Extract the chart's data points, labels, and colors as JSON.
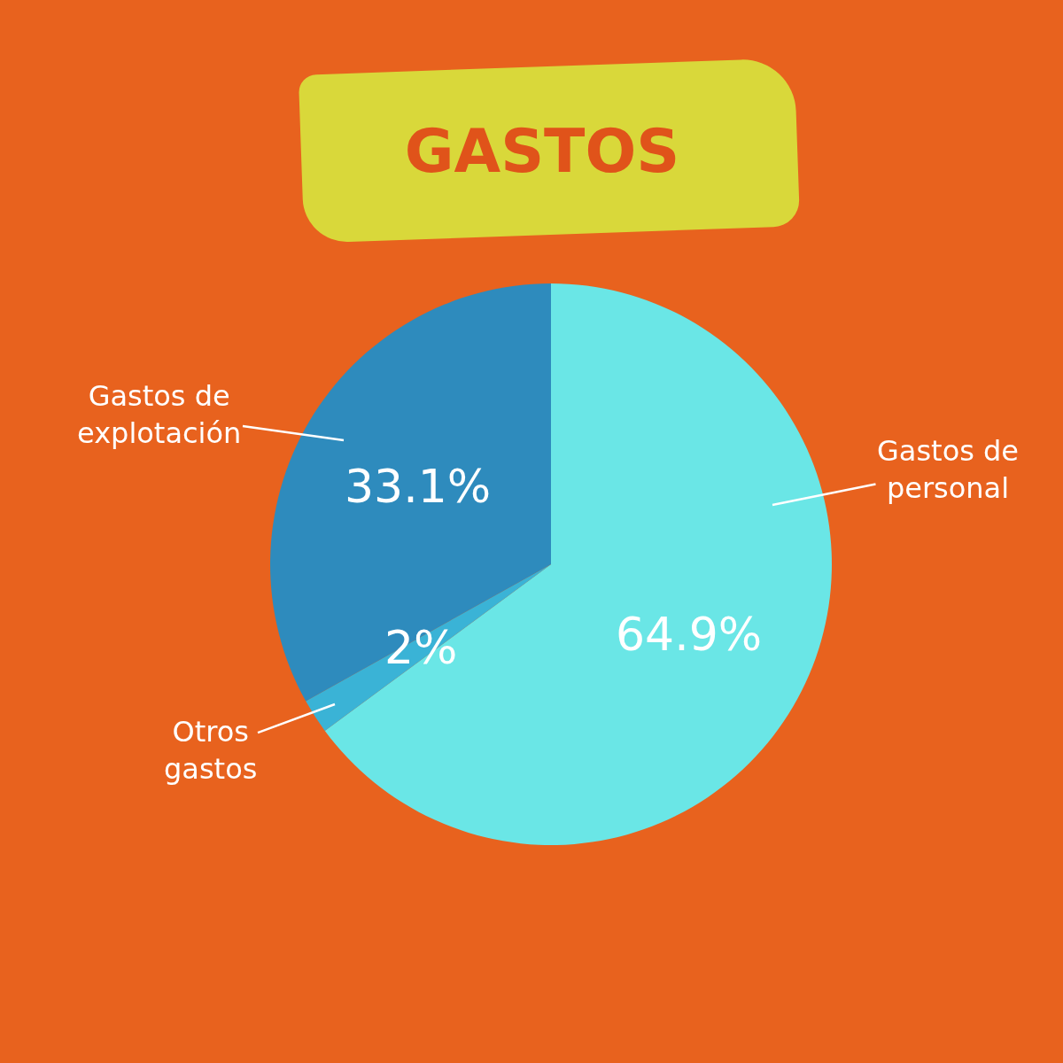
{
  "chart_data": {
    "type": "pie",
    "title": "GASTOS",
    "categories": [
      "Gastos de personal",
      "Otros gastos",
      "Gastos de explotación"
    ],
    "values": [
      64.9,
      2,
      33.1
    ],
    "value_labels": [
      "64.9%",
      "2%",
      "33.1%"
    ],
    "colors": [
      "#6ae6e6",
      "#3ab3d6",
      "#2e8bbd"
    ],
    "legend": false
  }
}
